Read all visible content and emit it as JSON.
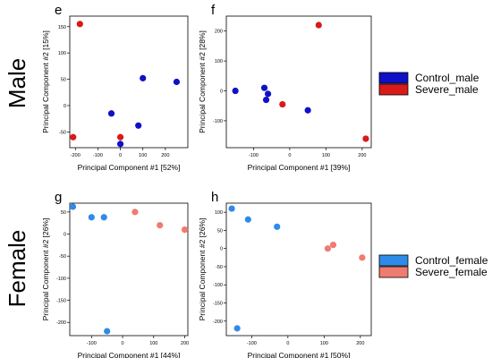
{
  "row_labels": [
    "Male",
    "Female"
  ],
  "legends": [
    {
      "items": [
        {
          "label": "Control_male",
          "color": "#1010c8"
        },
        {
          "label": "Severe_male",
          "color": "#d81a1a"
        }
      ]
    },
    {
      "items": [
        {
          "label": "Control_female",
          "color": "#2f8be8"
        },
        {
          "label": "Severe_female",
          "color": "#f07b70"
        }
      ]
    }
  ],
  "chart_data": [
    {
      "type": "scatter",
      "panel_label": "e",
      "xlabel": "Principal Component #1 [52%]",
      "ylabel": "Principal Component #2 [15%]",
      "xlim": [
        -225,
        300
      ],
      "ylim": [
        -80,
        170
      ],
      "xticks": [
        -200,
        -100,
        0,
        100,
        200
      ],
      "yticks": [
        -50,
        0,
        50,
        100,
        150
      ],
      "grid": false,
      "series": [
        {
          "name": "Control_male",
          "color": "#1010c8",
          "x": [
            -40,
            100,
            250,
            80,
            0
          ],
          "y": [
            -15,
            52,
            45,
            -38,
            -73
          ]
        },
        {
          "name": "Severe_male",
          "color": "#d81a1a",
          "x": [
            -180,
            -210,
            0
          ],
          "y": [
            155,
            -60,
            -60
          ]
        }
      ]
    },
    {
      "type": "scatter",
      "panel_label": "f",
      "xlabel": "Principal Component #1 [39%]",
      "ylabel": "Principal Component #2 [28%]",
      "xlim": [
        -175,
        225
      ],
      "ylim": [
        -190,
        250
      ],
      "xticks": [
        -100,
        0,
        100,
        200
      ],
      "yticks": [
        -100,
        0,
        100,
        200
      ],
      "grid": false,
      "series": [
        {
          "name": "Control_male",
          "color": "#1010c8",
          "x": [
            -150,
            -70,
            -60,
            -65,
            50
          ],
          "y": [
            0,
            10,
            -10,
            -30,
            -65
          ]
        },
        {
          "name": "Severe_male",
          "color": "#d81a1a",
          "x": [
            80,
            -20,
            210
          ],
          "y": [
            220,
            -45,
            -160
          ]
        }
      ]
    },
    {
      "type": "scatter",
      "panel_label": "g",
      "xlabel": "Principal Component #1 [44%]",
      "ylabel": "Principal Component #2 [26%]",
      "xlim": [
        -170,
        210
      ],
      "ylim": [
        -230,
        70
      ],
      "xticks": [
        -100,
        0,
        100,
        200
      ],
      "yticks": [
        -200,
        -150,
        -100,
        -50,
        0,
        50
      ],
      "grid": false,
      "series": [
        {
          "name": "Control_female",
          "color": "#2f8be8",
          "x": [
            -160,
            -100,
            -60,
            -50
          ],
          "y": [
            62,
            38,
            38,
            -220
          ]
        },
        {
          "name": "Severe_female",
          "color": "#f07b70",
          "x": [
            40,
            120,
            200
          ],
          "y": [
            50,
            20,
            10
          ]
        }
      ]
    },
    {
      "type": "scatter",
      "panel_label": "h",
      "xlabel": "Principal Component #1 [50%]",
      "ylabel": "Principal Component #2 [26%]",
      "xlim": [
        -170,
        230
      ],
      "ylim": [
        -240,
        125
      ],
      "xticks": [
        -100,
        0,
        100,
        200
      ],
      "yticks": [
        -200,
        -150,
        -100,
        -50,
        0,
        50,
        100
      ],
      "grid": false,
      "series": [
        {
          "name": "Control_female",
          "color": "#2f8be8",
          "x": [
            -155,
            -110,
            -30,
            -140
          ],
          "y": [
            110,
            80,
            60,
            -220
          ]
        },
        {
          "name": "Severe_female",
          "color": "#f07b70",
          "x": [
            110,
            125,
            205
          ],
          "y": [
            0,
            10,
            -25
          ]
        }
      ]
    }
  ]
}
